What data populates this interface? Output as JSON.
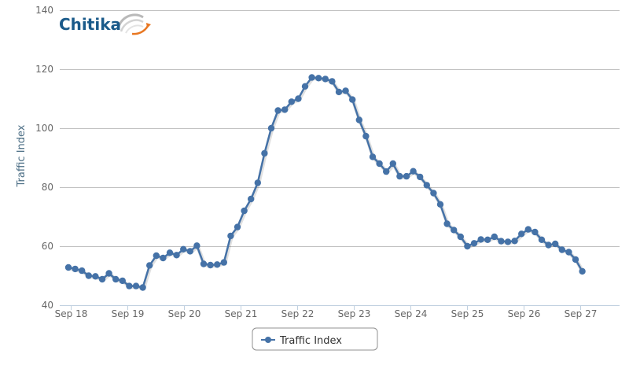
{
  "logo": {
    "text": "Chitika"
  },
  "chart_data": {
    "type": "line",
    "title": "",
    "xlabel": "",
    "ylabel": "Traffic Index",
    "ylim": [
      40,
      140
    ],
    "yticks": [
      40,
      60,
      80,
      100,
      120,
      140
    ],
    "xtick_labels": [
      "Sep 18",
      "Sep 19",
      "Sep 20",
      "Sep 21",
      "Sep 22",
      "Sep 23",
      "Sep 24",
      "Sep 25",
      "Sep 26",
      "Sep 27"
    ],
    "grid": "horizontal",
    "legend_position": "bottom-center",
    "series_color": "#4572a7",
    "series": [
      {
        "name": "Traffic Index",
        "values": [
          52.8,
          52.3,
          51.7,
          50.0,
          49.8,
          48.8,
          50.8,
          48.8,
          48.3,
          46.5,
          46.5,
          46.0,
          53.5,
          56.8,
          56.0,
          57.8,
          57.0,
          59.0,
          58.3,
          60.2,
          54.0,
          53.6,
          53.8,
          54.5,
          63.5,
          66.5,
          72.0,
          76.0,
          81.5,
          91.5,
          100.0,
          106.0,
          106.3,
          109.0,
          110.0,
          114.2,
          117.2,
          117.0,
          116.7,
          115.9,
          112.3,
          112.7,
          109.7,
          102.8,
          97.3,
          90.3,
          88.0,
          85.3,
          88.0,
          83.7,
          83.7,
          85.4,
          83.5,
          80.7,
          78.0,
          74.2,
          67.6,
          65.5,
          63.2,
          60.0,
          61.0,
          62.3,
          62.2,
          63.2,
          61.7,
          61.5,
          61.8,
          64.2,
          65.7,
          64.8,
          62.2,
          60.4,
          60.8,
          58.8,
          58.0,
          55.5,
          51.5
        ]
      }
    ]
  }
}
